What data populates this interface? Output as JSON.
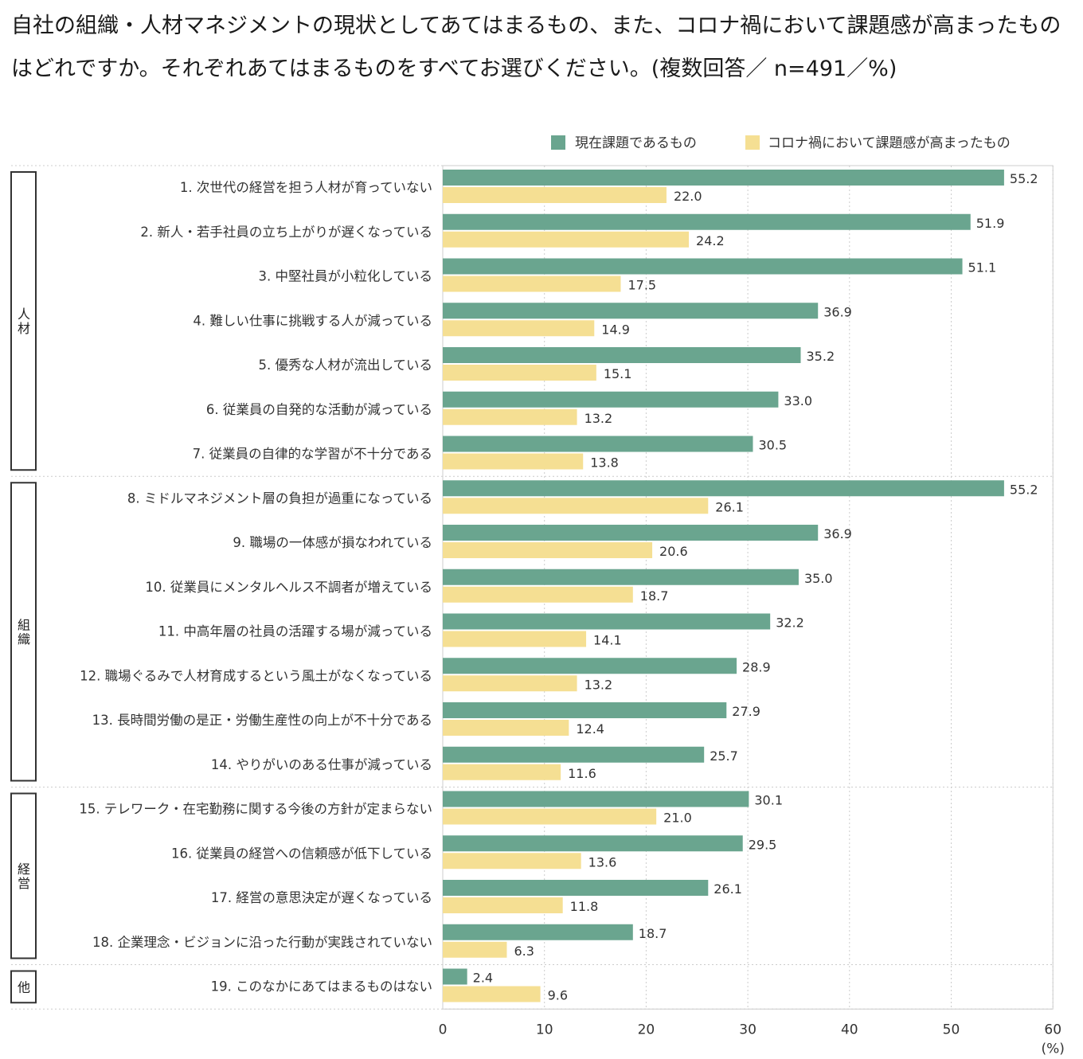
{
  "title": "自社の組織・人材マネジメントの現状としてあてはまるもの、また、コロナ禍において課題感が高まったものはどれですか。それぞれあてはまるものをすべてお選びください。(複数回答／ n=491／%)",
  "colors": {
    "current": "#6aa58f",
    "covid": "#f5df93",
    "grid": "#cccccc",
    "frame": "#333333"
  },
  "chart_data": {
    "type": "bar",
    "orientation": "horizontal",
    "title": "自社の組織・人材マネジメントの現状としてあてはまるもの、また、コロナ禍において課題感が高まったものはどれですか。それぞれあてはまるものをすべてお選びください。(複数回答／ n=491／%)",
    "xlabel": "(%)",
    "xlim": [
      0,
      60
    ],
    "xticks": [
      "0",
      "10",
      "20",
      "30",
      "40",
      "50",
      "60"
    ],
    "legend_position": "top-right",
    "categories": [
      "1. 次世代の経営を担う人材が育っていない",
      "2. 新人・若手社員の立ち上がりが遅くなっている",
      "3. 中堅社員が小粒化している",
      "4. 難しい仕事に挑戦する人が減っている",
      "5. 優秀な人材が流出している",
      "6. 従業員の自発的な活動が減っている",
      "7. 従業員の自律的な学習が不十分である",
      "8. ミドルマネジメント層の負担が過重になっている",
      "9. 職場の一体感が損なわれている",
      "10. 従業員にメンタルヘルス不調者が増えている",
      "11. 中高年層の社員の活躍する場が減っている",
      "12. 職場ぐるみで人材育成するという風土がなくなっている",
      "13. 長時間労働の是正・労働生産性の向上が不十分である",
      "14. やりがいのある仕事が減っている",
      "15. テレワーク・在宅勤務に関する今後の方針が定まらない",
      "16. 従業員の経営への信頼感が低下している",
      "17. 経営の意思決定が遅くなっている",
      "18. 企業理念・ビジョンに沿った行動が実践されていない",
      "19. このなかにあてはまるものはない"
    ],
    "series": [
      {
        "name": "現在課題であるもの",
        "values": [
          55.2,
          51.9,
          51.1,
          36.9,
          35.2,
          33.0,
          30.5,
          55.2,
          36.9,
          35.0,
          32.2,
          28.9,
          27.9,
          25.7,
          30.1,
          29.5,
          26.1,
          18.7,
          2.4
        ],
        "labels": [
          "55.2",
          "51.9",
          "51.1",
          "36.9",
          "35.2",
          "33.0",
          "30.5",
          "55.2",
          "36.9",
          "35.0",
          "32.2",
          "28.9",
          "27.9",
          "25.7",
          "30.1",
          "29.5",
          "26.1",
          "18.7",
          "2.4"
        ]
      },
      {
        "name": "コロナ禍において課題感が高まったもの",
        "values": [
          22.0,
          24.2,
          17.5,
          14.9,
          15.1,
          13.2,
          13.8,
          26.1,
          20.6,
          18.7,
          14.1,
          13.2,
          12.4,
          11.6,
          21.0,
          13.6,
          11.8,
          6.3,
          9.6
        ],
        "labels": [
          "22.0",
          "24.2",
          "17.5",
          "14.9",
          "15.1",
          "13.2",
          "13.8",
          "26.1",
          "20.6",
          "18.7",
          "14.1",
          "13.2",
          "12.4",
          "11.6",
          "21.0",
          "13.6",
          "11.8",
          "6.3",
          "9.6"
        ]
      }
    ],
    "groups": [
      {
        "label": "人材",
        "count": 7
      },
      {
        "label": "組織",
        "count": 7
      },
      {
        "label": "経営",
        "count": 4
      },
      {
        "label": "他",
        "count": 1
      }
    ]
  }
}
